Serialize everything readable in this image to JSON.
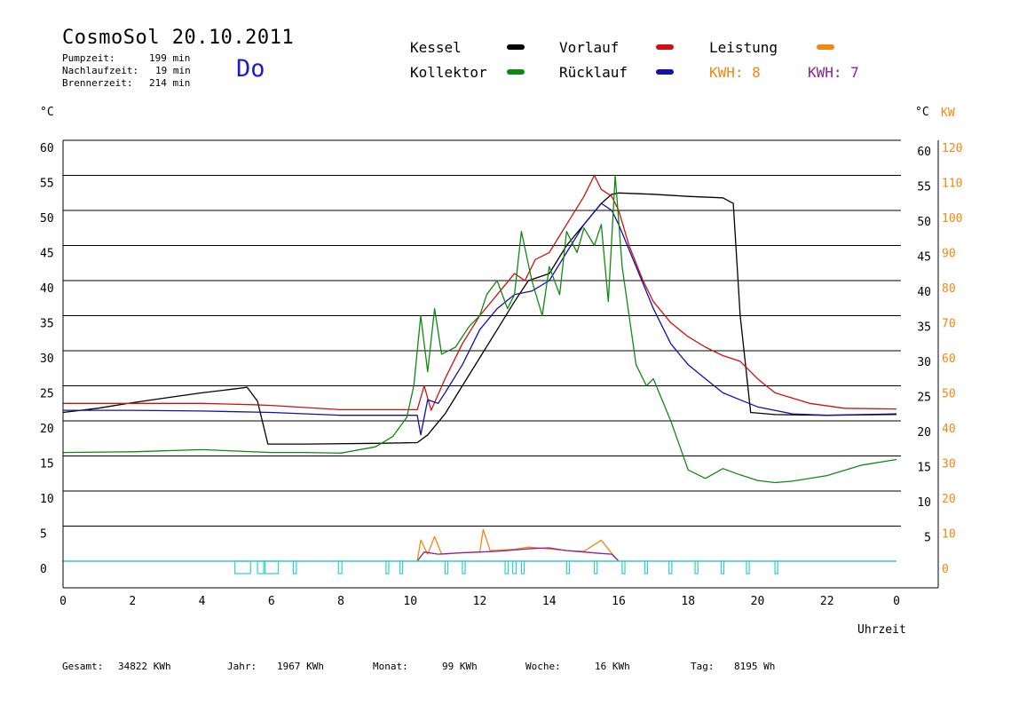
{
  "header": {
    "title": "CosmoSol 20.10.2011",
    "day": "Do",
    "stats": [
      {
        "label": "Pumpzeit:",
        "value": "199 min"
      },
      {
        "label": "Nachlaufzeit:",
        "value": "19 min"
      },
      {
        "label": "Brennerzeit:",
        "value": "214 min"
      }
    ]
  },
  "legend": {
    "kessel": "Kessel",
    "kollektor": "Kollektor",
    "vorlauf": "Vorlauf",
    "ruecklauf": "Rücklauf",
    "leistung": "Leistung",
    "kwh_a": "KWH: 8",
    "kwh_b": "KWH: 7"
  },
  "footer": {
    "gesamt_label": "Gesamt:",
    "gesamt_value": "34822 KWh",
    "jahr_label": "Jahr:",
    "jahr_value": "1967 KWh",
    "monat_label": "Monat:",
    "monat_value": "99 KWh",
    "woche_label": "Woche:",
    "woche_value": "16 KWh",
    "tag_label": "Tag:",
    "tag_value": "8195 Wh"
  },
  "chart_data": {
    "type": "line",
    "xlabel": "Uhrzeit",
    "ylabel_left": "°C",
    "ylabel_right_temp": "°C",
    "ylabel_right_power": "KW",
    "xlim": [
      0,
      24
    ],
    "ylim": [
      0,
      60
    ],
    "y2lim": [
      0,
      120
    ],
    "x_ticks": [
      "0",
      "2",
      "4",
      "6",
      "8",
      "10",
      "12",
      "14",
      "16",
      "18",
      "20",
      "22",
      "0"
    ],
    "y_ticks": [
      "0",
      "5",
      "10",
      "15",
      "20",
      "25",
      "30",
      "35",
      "40",
      "45",
      "50",
      "55",
      "60"
    ],
    "y_ticks_right": [
      "5",
      "10",
      "15",
      "20",
      "25",
      "30",
      "35",
      "40",
      "45",
      "50",
      "55",
      "60"
    ],
    "y2_ticks": [
      "0",
      "10",
      "20",
      "30",
      "40",
      "50",
      "60",
      "70",
      "80",
      "90",
      "100",
      "110",
      "120"
    ],
    "grid": true,
    "colors": {
      "kessel": "#000000",
      "kollektor": "#118811",
      "vorlauf": "#cc1111",
      "ruecklauf": "#1111aa",
      "leistung": "#ee8811",
      "kwh_b": "#882299",
      "pump": "#33cccc",
      "axis_right_power": "#ee8811"
    },
    "series": [
      {
        "name": "Kessel",
        "key": "kessel",
        "points": [
          [
            0,
            21.2
          ],
          [
            1,
            21.8
          ],
          [
            2,
            22.6
          ],
          [
            3,
            23.3
          ],
          [
            4,
            24
          ],
          [
            5,
            24.6
          ],
          [
            5.3,
            24.8
          ],
          [
            5.6,
            22.8
          ],
          [
            5.9,
            16.7
          ],
          [
            7,
            16.7
          ],
          [
            9,
            16.8
          ],
          [
            10.2,
            16.9
          ],
          [
            10.5,
            18
          ],
          [
            11,
            21
          ],
          [
            11.5,
            25
          ],
          [
            12,
            29
          ],
          [
            12.5,
            33
          ],
          [
            13,
            37
          ],
          [
            13.4,
            40
          ],
          [
            14,
            41
          ],
          [
            14.5,
            45
          ],
          [
            15,
            48
          ],
          [
            15.5,
            51
          ],
          [
            15.8,
            52.3
          ],
          [
            16,
            52.5
          ],
          [
            17,
            52.3
          ],
          [
            18,
            52
          ],
          [
            19,
            51.8
          ],
          [
            19.3,
            51
          ],
          [
            19.5,
            35
          ],
          [
            19.8,
            21.2
          ],
          [
            20.5,
            20.9
          ],
          [
            22,
            20.8
          ],
          [
            24,
            21
          ]
        ]
      },
      {
        "name": "Vorlauf",
        "key": "vorlauf",
        "points": [
          [
            0,
            22.5
          ],
          [
            2,
            22.5
          ],
          [
            4,
            22.5
          ],
          [
            5.5,
            22.3
          ],
          [
            6,
            22.2
          ],
          [
            8,
            21.6
          ],
          [
            10.2,
            21.6
          ],
          [
            10.4,
            25
          ],
          [
            10.6,
            21.5
          ],
          [
            11,
            26
          ],
          [
            11.5,
            31
          ],
          [
            12,
            35
          ],
          [
            12.5,
            38
          ],
          [
            13,
            41
          ],
          [
            13.3,
            40
          ],
          [
            13.6,
            43
          ],
          [
            14,
            44
          ],
          [
            14.5,
            48
          ],
          [
            15,
            52
          ],
          [
            15.3,
            55
          ],
          [
            15.5,
            53
          ],
          [
            15.8,
            52
          ],
          [
            16,
            50
          ],
          [
            16.3,
            45
          ],
          [
            16.7,
            40
          ],
          [
            17,
            37
          ],
          [
            17.5,
            34
          ],
          [
            18,
            32
          ],
          [
            18.5,
            30.5
          ],
          [
            19,
            29.3
          ],
          [
            19.5,
            28.5
          ],
          [
            20,
            26
          ],
          [
            20.5,
            24
          ],
          [
            21.5,
            22.5
          ],
          [
            22.5,
            21.8
          ],
          [
            24,
            21.7
          ]
        ]
      },
      {
        "name": "Rücklauf",
        "key": "ruecklauf",
        "points": [
          [
            0,
            21.5
          ],
          [
            2,
            21.5
          ],
          [
            4,
            21.4
          ],
          [
            6,
            21.2
          ],
          [
            8,
            20.8
          ],
          [
            10.2,
            20.8
          ],
          [
            10.3,
            18
          ],
          [
            10.5,
            23
          ],
          [
            10.8,
            22.5
          ],
          [
            11,
            24
          ],
          [
            11.5,
            28
          ],
          [
            12,
            33
          ],
          [
            12.5,
            36
          ],
          [
            13,
            38
          ],
          [
            13.5,
            38.5
          ],
          [
            14,
            40
          ],
          [
            14.5,
            44
          ],
          [
            15,
            48
          ],
          [
            15.5,
            51
          ],
          [
            15.8,
            50
          ],
          [
            16,
            48
          ],
          [
            16.5,
            42
          ],
          [
            17,
            36
          ],
          [
            17.5,
            31
          ],
          [
            18,
            28
          ],
          [
            18.5,
            26
          ],
          [
            19,
            24
          ],
          [
            19.5,
            23
          ],
          [
            20,
            22
          ],
          [
            21,
            21
          ],
          [
            22,
            20.8
          ],
          [
            24,
            20.9
          ]
        ]
      },
      {
        "name": "Kollektor",
        "key": "kollektor",
        "points": [
          [
            0,
            15.5
          ],
          [
            2,
            15.6
          ],
          [
            4,
            15.9
          ],
          [
            6,
            15.5
          ],
          [
            7,
            15.5
          ],
          [
            8,
            15.4
          ],
          [
            9,
            16.3
          ],
          [
            9.5,
            17.8
          ],
          [
            9.9,
            20.5
          ],
          [
            10.1,
            25
          ],
          [
            10.3,
            35
          ],
          [
            10.5,
            27
          ],
          [
            10.7,
            36
          ],
          [
            10.9,
            29.5
          ],
          [
            11.3,
            30.5
          ],
          [
            11.7,
            33.5
          ],
          [
            12,
            35
          ],
          [
            12.2,
            38
          ],
          [
            12.5,
            40
          ],
          [
            12.8,
            36
          ],
          [
            13,
            38
          ],
          [
            13.2,
            47
          ],
          [
            13.5,
            40
          ],
          [
            13.8,
            35
          ],
          [
            14,
            42
          ],
          [
            14.3,
            38
          ],
          [
            14.5,
            47
          ],
          [
            14.8,
            44
          ],
          [
            15,
            47.5
          ],
          [
            15.3,
            45
          ],
          [
            15.5,
            48
          ],
          [
            15.7,
            37
          ],
          [
            15.9,
            55
          ],
          [
            16.1,
            42
          ],
          [
            16.5,
            28
          ],
          [
            16.8,
            25
          ],
          [
            17,
            26
          ],
          [
            17.5,
            20
          ],
          [
            18,
            13
          ],
          [
            18.5,
            11.8
          ],
          [
            19,
            13.2
          ],
          [
            19.5,
            12.3
          ],
          [
            20,
            11.5
          ],
          [
            20.5,
            11.2
          ],
          [
            21,
            11.4
          ],
          [
            22,
            12.2
          ],
          [
            23,
            13.7
          ],
          [
            24,
            14.5
          ]
        ]
      },
      {
        "name": "Leistung",
        "key": "leistung",
        "points": [
          [
            10.2,
            0
          ],
          [
            10.3,
            3
          ],
          [
            10.5,
            1
          ],
          [
            10.7,
            3.5
          ],
          [
            10.9,
            1
          ],
          [
            11.5,
            1.2
          ],
          [
            12,
            1.3
          ],
          [
            12.1,
            4.5
          ],
          [
            12.3,
            1.5
          ],
          [
            13,
            1.7
          ],
          [
            13.4,
            2
          ],
          [
            13.9,
            1.8
          ],
          [
            14.5,
            1.5
          ],
          [
            15,
            1.4
          ],
          [
            15.5,
            3
          ],
          [
            15.8,
            1.1
          ],
          [
            16,
            0
          ]
        ]
      },
      {
        "name": "KWH: 7",
        "key": "kwh_b",
        "points": [
          [
            10.2,
            0
          ],
          [
            10.4,
            1.3
          ],
          [
            10.8,
            1
          ],
          [
            11.5,
            1.2
          ],
          [
            12,
            1.3
          ],
          [
            12.5,
            1.4
          ],
          [
            13,
            1.6
          ],
          [
            13.5,
            1.8
          ],
          [
            14,
            1.9
          ],
          [
            14.5,
            1.5
          ],
          [
            15,
            1.3
          ],
          [
            15.5,
            1.1
          ],
          [
            15.8,
            1
          ],
          [
            16,
            0
          ]
        ]
      }
    ],
    "pump_pulses": [
      [
        4.95,
        5.4
      ],
      [
        5.6,
        5.78
      ],
      [
        5.82,
        6.2
      ],
      [
        6.63,
        6.72
      ],
      [
        7.93,
        8.03
      ],
      [
        9.3,
        9.38
      ],
      [
        9.7,
        9.78
      ],
      [
        11.0,
        11.08
      ],
      [
        11.5,
        11.58
      ],
      [
        12.73,
        12.82
      ],
      [
        12.95,
        13.05
      ],
      [
        13.2,
        13.28
      ],
      [
        14.5,
        14.58
      ],
      [
        15.3,
        15.38
      ],
      [
        16.1,
        16.18
      ],
      [
        16.75,
        16.83
      ],
      [
        17.45,
        17.53
      ],
      [
        18.2,
        18.28
      ],
      [
        18.95,
        19.03
      ],
      [
        19.68,
        19.76
      ],
      [
        20.5,
        20.58
      ]
    ]
  }
}
